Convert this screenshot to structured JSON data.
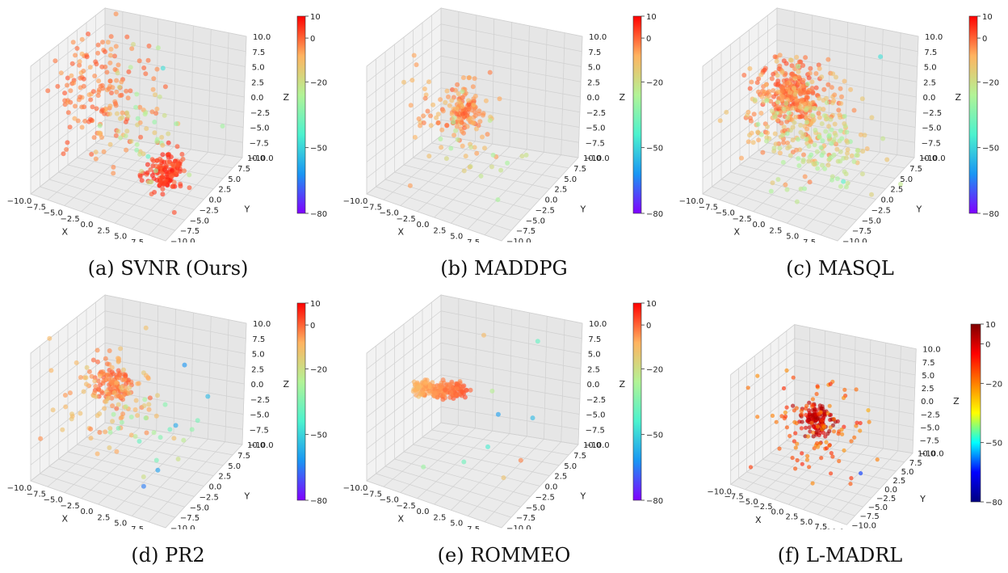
{
  "figure": {
    "colorscale": [
      "#8000ff",
      "#1996f3",
      "#4cf2ce",
      "#b2f396",
      "#ffb360",
      "#ff0000"
    ],
    "colorscale_jet": [
      "#00007f",
      "#0000ff",
      "#00ffff",
      "#ffff00",
      "#ff7f00",
      "#ff0000",
      "#7f0000"
    ]
  },
  "chart_data": [
    {
      "type": "scatter",
      "title": "",
      "caption": "(a) SVNR (Ours)",
      "xlabel": "X",
      "ylabel": "Y",
      "zlabel": "Z",
      "xlim": [
        -10,
        10
      ],
      "ylim": [
        -10,
        10
      ],
      "zlim": [
        -10,
        10
      ],
      "x_ticks": [
        "−10.0",
        "−7.5",
        "−5.0",
        "−2.5",
        "0.0",
        "2.5",
        "5.0",
        "7.5",
        "10.0"
      ],
      "y_ticks": [
        "−10.0",
        "−7.5",
        "−5.0",
        "−2.5",
        "0.0",
        "2.5",
        "5.0",
        "7.5",
        "10.0"
      ],
      "z_ticks": [
        "−10.0",
        "−7.5",
        "−5.0",
        "−2.5",
        "0.0",
        "2.5",
        "5.0",
        "7.5",
        "10.0"
      ],
      "colorbar": {
        "range": [
          -80,
          10
        ],
        "ticks": [
          "10",
          "0",
          "−20",
          "−50",
          "−80"
        ],
        "colormap": "rainbow"
      },
      "clusters": [
        {
          "center": [
            -6,
            2,
            2
          ],
          "spread": [
            3.5,
            3.5,
            4
          ],
          "count": 160,
          "value_range": [
            -8,
            2
          ]
        },
        {
          "center": [
            6,
            -3,
            -4
          ],
          "spread": [
            1.2,
            1.2,
            1.3
          ],
          "count": 140,
          "value_range": [
            -1,
            8
          ]
        },
        {
          "center": [
            0,
            0,
            -1
          ],
          "spread": [
            4,
            4,
            4
          ],
          "count": 50,
          "value_range": [
            -32,
            -10
          ]
        }
      ],
      "points": [
        {
          "x": 3,
          "y": 2,
          "z": 9,
          "v": -48
        },
        {
          "x": -1,
          "y": 8,
          "z": 8,
          "v": -25
        },
        {
          "x": 3,
          "y": -2,
          "z": -3,
          "v": -40
        }
      ]
    },
    {
      "type": "scatter",
      "title": "",
      "caption": "(b) MADDPG",
      "xlabel": "X",
      "ylabel": "Y",
      "zlabel": "Z",
      "xlim": [
        -10,
        10
      ],
      "ylim": [
        -10,
        10
      ],
      "zlim": [
        -10,
        10
      ],
      "x_ticks": [
        "−10.0",
        "−7.5",
        "−5.0",
        "−2.5",
        "0.0",
        "2.5",
        "5.0",
        "7.5",
        "10.0"
      ],
      "y_ticks": [
        "−10.0",
        "−7.5",
        "−5.0",
        "−2.5",
        "0.0",
        "2.5",
        "5.0",
        "7.5",
        "10.0"
      ],
      "z_ticks": [
        "−10.0",
        "−7.5",
        "−5.0",
        "−2.5",
        "0.0",
        "2.5",
        "5.0",
        "7.5",
        "10.0"
      ],
      "colorbar": {
        "range": [
          -80,
          10
        ],
        "ticks": [
          "10",
          "0",
          "−20",
          "−50",
          "−80"
        ],
        "colormap": "rainbow"
      },
      "clusters": [
        {
          "center": [
            -2,
            2,
            0.5
          ],
          "spread": [
            1.2,
            1.2,
            1.2
          ],
          "count": 90,
          "value_range": [
            -6,
            2
          ]
        },
        {
          "center": [
            -3,
            1,
            0
          ],
          "spread": [
            3.5,
            3.5,
            3.5
          ],
          "count": 80,
          "value_range": [
            -12,
            -2
          ]
        },
        {
          "center": [
            1,
            -1,
            -3
          ],
          "spread": [
            4,
            4,
            4
          ],
          "count": 20,
          "value_range": [
            -30,
            -14
          ]
        }
      ],
      "points": []
    },
    {
      "type": "scatter",
      "title": "",
      "caption": "(c) MASQL",
      "xlabel": "X",
      "ylabel": "Y",
      "zlabel": "Z",
      "xlim": [
        -10,
        10
      ],
      "ylim": [
        -10,
        10
      ],
      "zlim": [
        -10,
        10
      ],
      "x_ticks": [
        "−10.0",
        "−7.5",
        "−5.0",
        "−2.5",
        "0.0",
        "2.5",
        "5.0",
        "7.5",
        "10.0"
      ],
      "y_ticks": [
        "−10.0",
        "−7.5",
        "−5.0",
        "−2.5",
        "0.0",
        "2.5",
        "5.0",
        "7.5",
        "10.0"
      ],
      "z_ticks": [
        "−10.0",
        "−7.5",
        "−5.0",
        "−2.5",
        "0.0",
        "2.5",
        "5.0",
        "7.5",
        "10.0"
      ],
      "colorbar": {
        "range": [
          -80,
          10
        ],
        "ticks": [
          "10",
          "0",
          "−20",
          "−50",
          "−80"
        ],
        "colormap": "rainbow"
      },
      "clusters": [
        {
          "center": [
            -4,
            3,
            2
          ],
          "spread": [
            2,
            2,
            2
          ],
          "count": 220,
          "value_range": [
            -5,
            3
          ]
        },
        {
          "center": [
            -2,
            1,
            0
          ],
          "spread": [
            4,
            4,
            4
          ],
          "count": 200,
          "value_range": [
            -14,
            -2
          ]
        },
        {
          "center": [
            2,
            0,
            -2
          ],
          "spread": [
            4,
            4,
            4
          ],
          "count": 120,
          "value_range": [
            -30,
            -14
          ]
        }
      ],
      "points": [
        {
          "x": 7,
          "y": 7,
          "z": 10,
          "v": -48
        },
        {
          "x": 7,
          "y": -3,
          "z": -5,
          "v": -42
        }
      ]
    },
    {
      "type": "scatter",
      "title": "",
      "caption": "(d) PR2",
      "xlabel": "X",
      "ylabel": "Y",
      "zlabel": "Z",
      "xlim": [
        -10,
        10
      ],
      "ylim": [
        -10,
        10
      ],
      "zlim": [
        -10,
        10
      ],
      "x_ticks": [
        "−10.0",
        "−7.5",
        "−5.0",
        "−2.5",
        "0.0",
        "2.5",
        "5.0",
        "7.5",
        "10.0"
      ],
      "y_ticks": [
        "−10.0",
        "−7.5",
        "−5.0",
        "−2.5",
        "0.0",
        "2.5",
        "5.0",
        "7.5",
        "10.0"
      ],
      "z_ticks": [
        "−10.0",
        "−7.5",
        "−5.0",
        "−2.5",
        "0.0",
        "2.5",
        "5.0",
        "7.5",
        "10.0"
      ],
      "colorbar": {
        "range": [
          -80,
          10
        ],
        "ticks": [
          "10",
          "0",
          "−20",
          "−50",
          "−80"
        ],
        "colormap": "rainbow"
      },
      "clusters": [
        {
          "center": [
            -5,
            3,
            1
          ],
          "spread": [
            1.3,
            1.3,
            1.2
          ],
          "count": 110,
          "value_range": [
            -6,
            2
          ]
        },
        {
          "center": [
            -5,
            2,
            0
          ],
          "spread": [
            3.5,
            3.5,
            4
          ],
          "count": 90,
          "value_range": [
            -14,
            -3
          ]
        },
        {
          "center": [
            3,
            -1,
            -3
          ],
          "spread": [
            4,
            4,
            4
          ],
          "count": 20,
          "value_range": [
            -40,
            -20
          ]
        }
      ],
      "points": [
        {
          "x": 8,
          "y": 5,
          "z": 3,
          "v": -55
        },
        {
          "x": 4,
          "y": 6,
          "z": 6,
          "v": -62
        },
        {
          "x": 5,
          "y": -3,
          "z": -6,
          "v": -60
        },
        {
          "x": 4,
          "y": -5,
          "z": -8,
          "v": -65
        },
        {
          "x": 6,
          "y": 0,
          "z": 0,
          "v": -58
        }
      ]
    },
    {
      "type": "scatter",
      "title": "",
      "caption": "(e) ROMMEO",
      "xlabel": "X",
      "ylabel": "Y",
      "zlabel": "Z",
      "xlim": [
        -10,
        10
      ],
      "ylim": [
        -10,
        10
      ],
      "zlim": [
        -10,
        10
      ],
      "x_ticks": [
        "−10.0",
        "−7.5",
        "−5.0",
        "−2.5",
        "0.0",
        "2.5",
        "5.0",
        "7.5",
        "10.0"
      ],
      "y_ticks": [
        "−10.0",
        "−7.5",
        "−5.0",
        "−2.5",
        "0.0",
        "2.5",
        "5.0",
        "7.5",
        "10.0"
      ],
      "z_ticks": [
        "−10.0",
        "−7.5",
        "−5.0",
        "−2.5",
        "0.0",
        "2.5",
        "5.0",
        "7.5",
        "10.0"
      ],
      "colorbar": {
        "range": [
          -80,
          10
        ],
        "ticks": [
          "10",
          "0",
          "−20",
          "−50",
          "−80"
        ],
        "colormap": "rainbow"
      },
      "line_cluster": {
        "from": [
          -9,
          1,
          0
        ],
        "to": [
          -2,
          2,
          1.5
        ],
        "count": 180,
        "value_from": -9,
        "value_to": 1
      },
      "clusters": [],
      "points": [
        {
          "x": 6,
          "y": 7,
          "z": 10,
          "v": -40
        },
        {
          "x": 8,
          "y": 2,
          "z": 1,
          "v": -55
        },
        {
          "x": 3,
          "y": -1,
          "z": -4,
          "v": -45
        },
        {
          "x": 2,
          "y": 2,
          "z": 3,
          "v": -25
        },
        {
          "x": 0,
          "y": -2,
          "z": -7,
          "v": -38
        },
        {
          "x": 9,
          "y": -3,
          "z": -3,
          "v": -3
        },
        {
          "x": -6,
          "y": -2,
          "z": -10,
          "v": -30
        },
        {
          "x": -2,
          "y": 7,
          "z": 8,
          "v": -10
        },
        {
          "x": 4,
          "y": 0,
          "z": 1,
          "v": -60
        },
        {
          "x": 7,
          "y": -4,
          "z": -6,
          "v": -12
        }
      ]
    },
    {
      "type": "scatter",
      "title": "",
      "caption": "(f) L-MADRL",
      "xlabel": "X",
      "ylabel": "Y",
      "zlabel": "Z",
      "xlim": [
        -10,
        10
      ],
      "ylim": [
        -10,
        10
      ],
      "zlim": [
        -10,
        10
      ],
      "x_ticks": [
        "−10.0",
        "−7.5",
        "−5.0",
        "−2.5",
        "0.0",
        "2.5",
        "5.0",
        "7.5",
        "10.0"
      ],
      "y_ticks": [
        "−10.0",
        "−7.5",
        "−5.0",
        "−2.5",
        "0.0",
        "2.5",
        "5.0",
        "7.5",
        "10.0"
      ],
      "z_ticks": [
        "−10.0",
        "−7.5",
        "−5.0",
        "−2.5",
        "0.0",
        "2.5",
        "5.0",
        "7.5",
        "10.0"
      ],
      "colorbar": {
        "range": [
          -80,
          10
        ],
        "ticks": [
          "10",
          "0",
          "−20",
          "−50",
          "−80"
        ],
        "colormap": "jet"
      },
      "clusters": [
        {
          "center": [
            -1,
            1,
            0
          ],
          "spread": [
            1.3,
            1.3,
            1.3
          ],
          "count": 120,
          "value_range": [
            -2,
            6
          ]
        },
        {
          "center": [
            -1,
            0,
            0
          ],
          "spread": [
            4,
            4,
            4.5
          ],
          "count": 100,
          "value_range": [
            -22,
            -8
          ]
        }
      ],
      "points": [
        {
          "x": 8,
          "y": -2,
          "z": -5,
          "v": -62
        },
        {
          "x": 6,
          "y": 4,
          "z": 3,
          "v": -25
        }
      ]
    }
  ]
}
